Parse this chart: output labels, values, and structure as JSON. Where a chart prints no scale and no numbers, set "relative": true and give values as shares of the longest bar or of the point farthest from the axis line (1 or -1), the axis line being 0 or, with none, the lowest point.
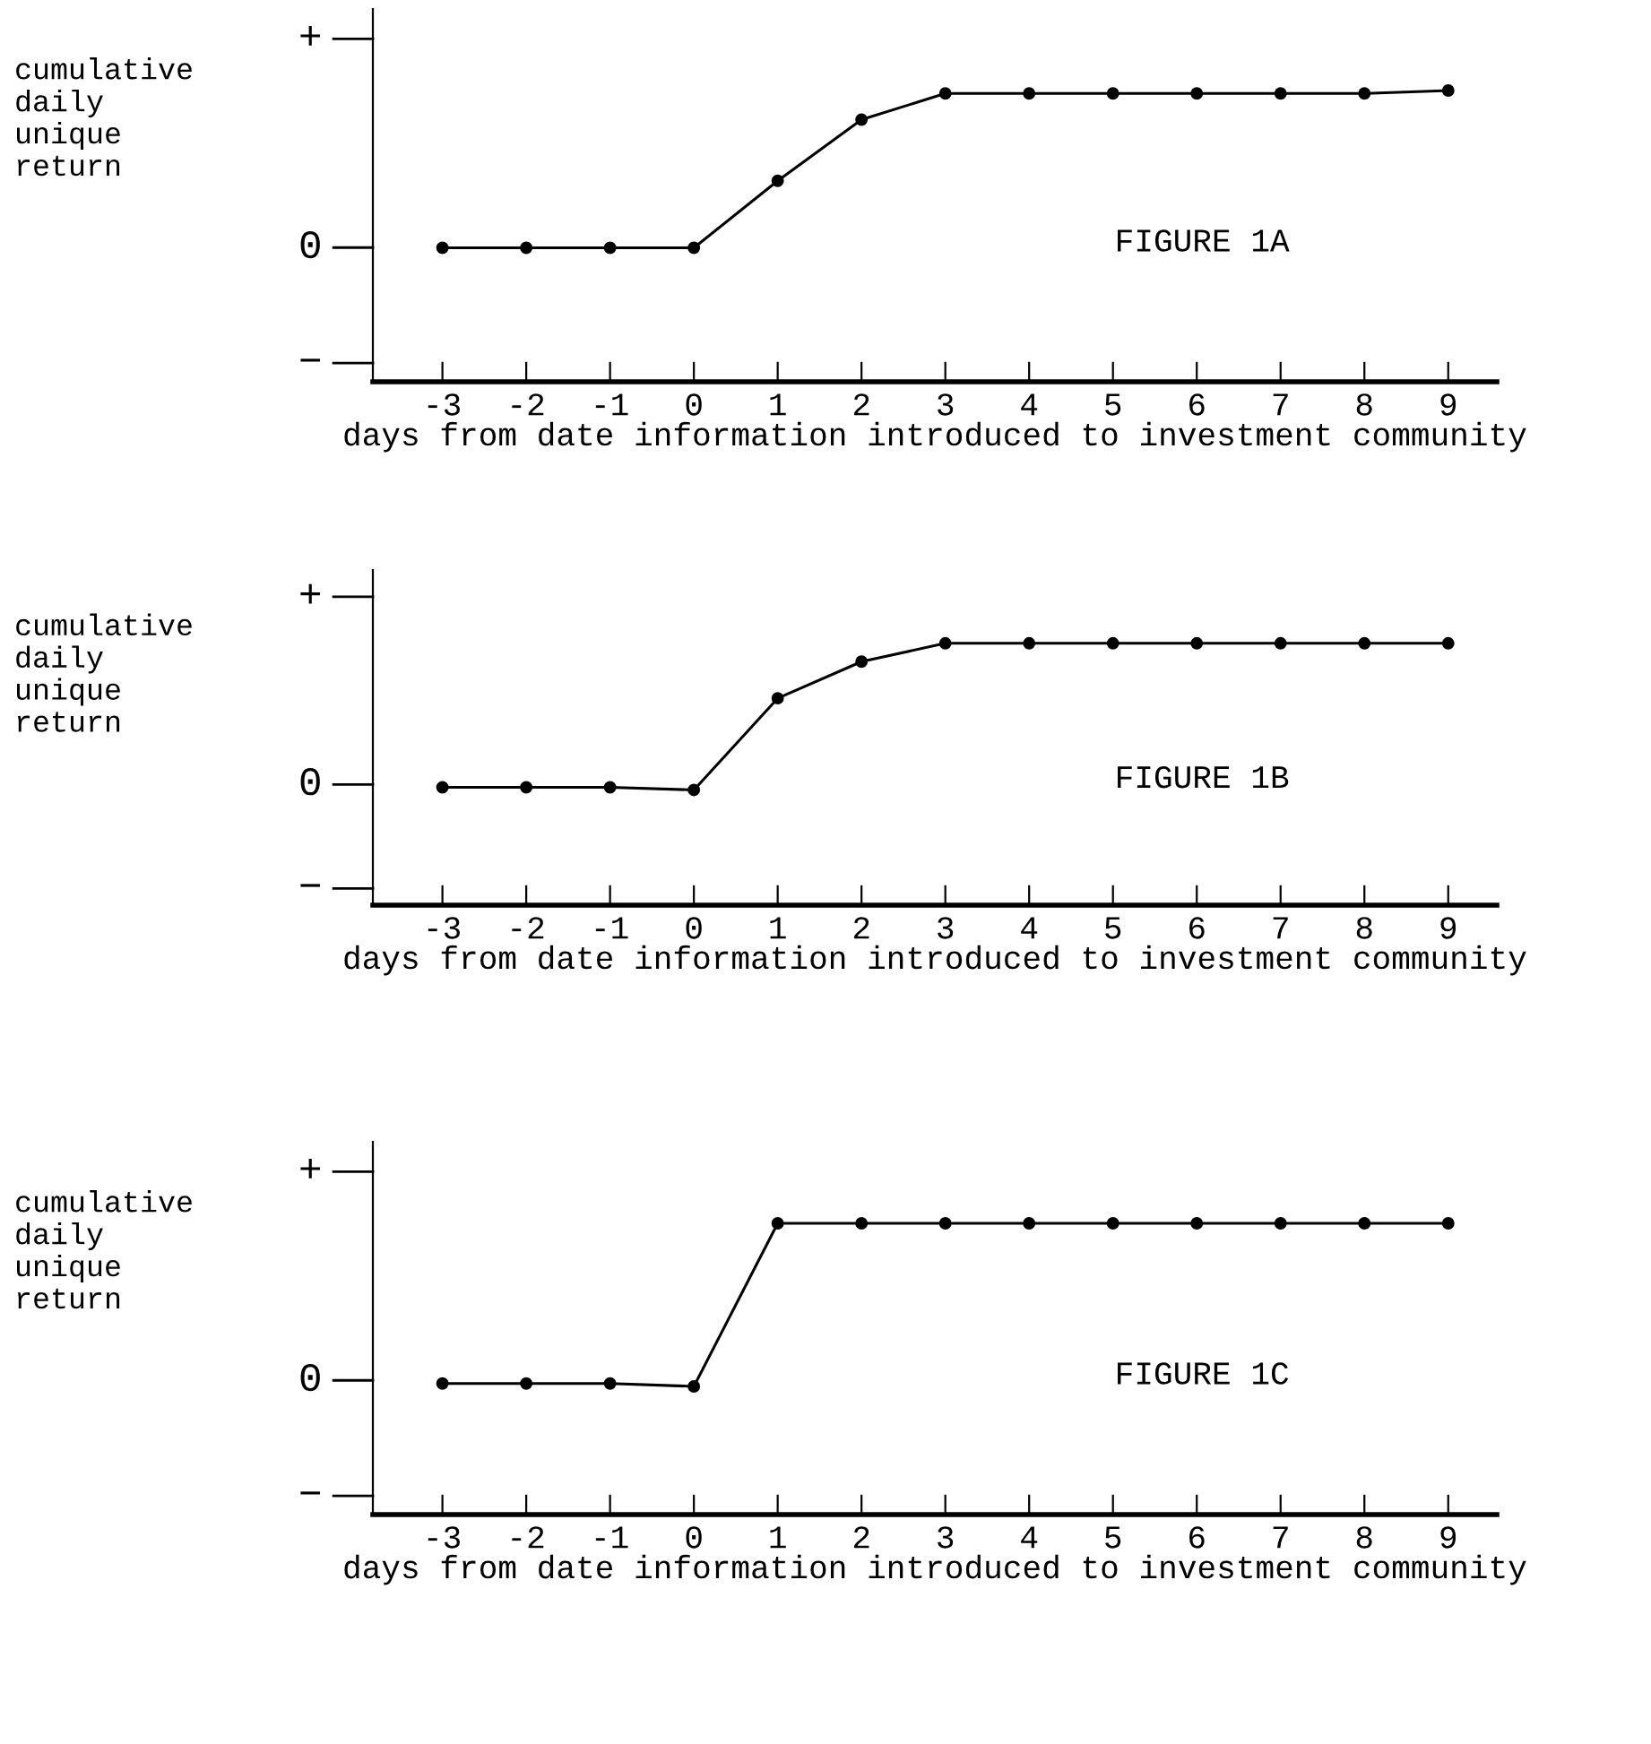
{
  "chart_data": [
    {
      "type": "line",
      "relative": true,
      "xlabel": "days from date information introduced to investment community",
      "ylabel": "cumulative\ndaily\nunique\nreturn",
      "annotations": [
        "+",
        "0",
        "−",
        "FIGURE 1A"
      ],
      "x": [
        -3,
        -2,
        -1,
        0,
        1,
        2,
        3,
        4,
        5,
        6,
        7,
        8,
        9
      ],
      "series": [
        {
          "color": "#000000",
          "values": [
            0.46,
            0.46,
            0.46,
            0.46,
            0.69,
            0.9,
            0.99,
            0.99,
            0.99,
            0.99,
            0.99,
            0.99,
            1
          ]
        }
      ],
      "xlim": [
        -3.83,
        9.58
      ],
      "xticks": [
        -3,
        -2,
        -1,
        0,
        1,
        2,
        3,
        4,
        5,
        6,
        7,
        8,
        9
      ],
      "grid": false,
      "legend": false,
      "marker": "circle",
      "line_style": "solid"
    },
    {
      "type": "line",
      "relative": true,
      "xlabel": "days from date information introduced to investment community",
      "ylabel": "cumulative\ndaily\nunique\nreturn",
      "annotations": [
        "+",
        "0",
        "−",
        "FIGURE 1B"
      ],
      "x": [
        -3,
        -2,
        -1,
        0,
        1,
        2,
        3,
        4,
        5,
        6,
        7,
        8,
        9
      ],
      "series": [
        {
          "color": "#000000",
          "values": [
            0.45,
            0.45,
            0.45,
            0.44,
            0.79,
            0.93,
            1,
            1,
            1,
            1,
            1,
            1,
            1
          ]
        }
      ],
      "xlim": [
        -3.83,
        9.58
      ],
      "xticks": [
        -3,
        -2,
        -1,
        0,
        1,
        2,
        3,
        4,
        5,
        6,
        7,
        8,
        9
      ],
      "grid": false,
      "legend": false,
      "marker": "circle",
      "line_style": "solid"
    },
    {
      "type": "line",
      "relative": true,
      "xlabel": "days from date information introduced to investment community",
      "ylabel": "cumulative\ndaily\nunique\nreturn",
      "annotations": [
        "+",
        "0",
        "−",
        "FIGURE 1C"
      ],
      "x": [
        -3,
        -2,
        -1,
        0,
        1,
        2,
        3,
        4,
        5,
        6,
        7,
        8,
        9
      ],
      "series": [
        {
          "color": "#000000",
          "values": [
            0.45,
            0.45,
            0.45,
            0.44,
            1,
            1,
            1,
            1,
            1,
            1,
            1,
            1,
            1
          ]
        }
      ],
      "xlim": [
        -3.83,
        9.58
      ],
      "xticks": [
        -3,
        -2,
        -1,
        0,
        1,
        2,
        3,
        4,
        5,
        6,
        7,
        8,
        9
      ],
      "grid": false,
      "legend": false,
      "marker": "circle",
      "line_style": "solid"
    }
  ]
}
